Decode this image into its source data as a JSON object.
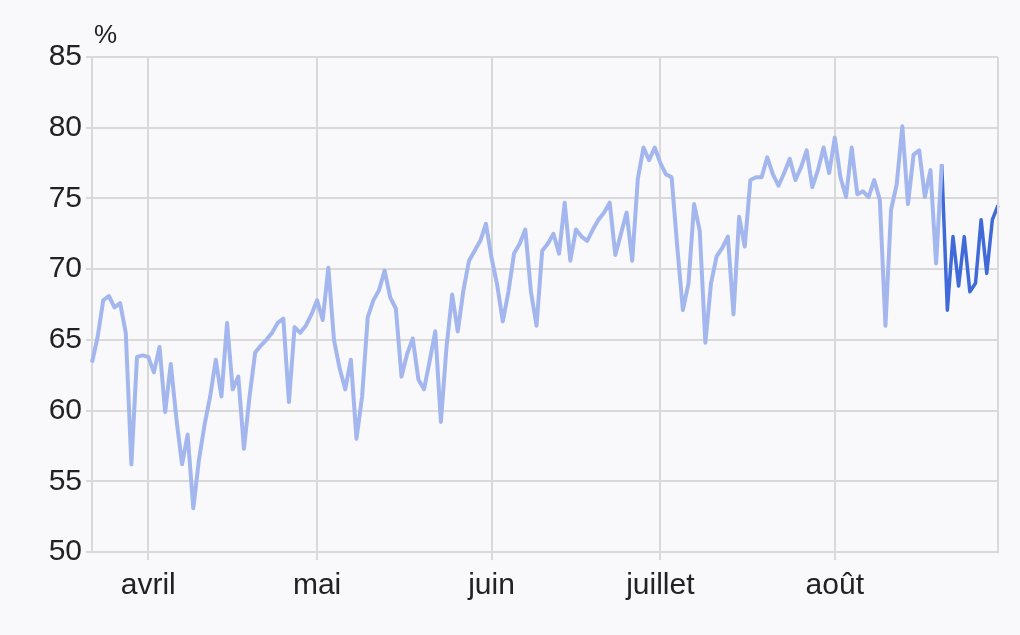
{
  "chart_data": {
    "type": "line",
    "ylabel": "%",
    "categories": [
      null,
      null,
      null,
      null,
      null,
      null,
      null,
      null,
      null,
      null,
      "avril",
      null,
      null,
      null,
      null,
      null,
      null,
      null,
      null,
      null,
      null,
      null,
      null,
      null,
      null,
      null,
      null,
      null,
      null,
      null,
      null,
      null,
      null,
      null,
      null,
      null,
      null,
      null,
      null,
      null,
      "mai",
      null,
      null,
      null,
      null,
      null,
      null,
      null,
      null,
      null,
      null,
      null,
      null,
      null,
      null,
      null,
      null,
      null,
      null,
      null,
      null,
      null,
      null,
      null,
      null,
      null,
      null,
      null,
      null,
      null,
      null,
      "juin",
      null,
      null,
      null,
      null,
      null,
      null,
      null,
      null,
      null,
      null,
      null,
      null,
      null,
      null,
      null,
      null,
      null,
      null,
      null,
      null,
      null,
      null,
      null,
      null,
      null,
      null,
      null,
      null,
      null,
      "juillet",
      null,
      null,
      null,
      null,
      null,
      null,
      null,
      null,
      null,
      null,
      null,
      null,
      null,
      null,
      null,
      null,
      null,
      null,
      null,
      null,
      null,
      null,
      null,
      null,
      null,
      null,
      null,
      null,
      null,
      null,
      "août",
      null,
      null,
      null,
      null,
      null,
      null,
      null,
      null,
      null,
      null,
      null,
      null,
      null,
      null,
      null,
      null,
      null,
      null,
      null,
      null,
      null,
      null,
      null,
      null,
      null,
      null,
      null,
      null,
      null
    ],
    "ylim": [
      50,
      85
    ],
    "yticks": [
      50,
      55,
      60,
      65,
      70,
      75,
      80,
      85
    ],
    "grid": true,
    "legend": false,
    "line_style": "solid",
    "series": [
      {
        "color": "#a3b7ee",
        "values": [
          63.4,
          65.2,
          67.8,
          68.1,
          67.3,
          67.6,
          65.5,
          56.2,
          63.8,
          63.9,
          63.8,
          62.7,
          64.5,
          59.9,
          63.3,
          59.4,
          56.2,
          58.3,
          53.1,
          56.5,
          59.0,
          61.0,
          63.6,
          61.0,
          66.2,
          61.5,
          62.4,
          57.3,
          61.0,
          64.1,
          64.6,
          65.0,
          65.5,
          66.2,
          66.5,
          60.6,
          65.9,
          65.5,
          66.0,
          66.8,
          67.8,
          66.4,
          70.1,
          65.0,
          63.0,
          61.5,
          63.6,
          58.0,
          61.0,
          66.6,
          67.8,
          68.5,
          69.9,
          68.0,
          67.2,
          62.4,
          64.0,
          65.1,
          62.2,
          61.5,
          63.5,
          65.6,
          59.2,
          64.5,
          68.2,
          65.6,
          68.5,
          70.6,
          71.3,
          72.0,
          73.2,
          70.8,
          68.9,
          66.3,
          68.4,
          71.1,
          71.8,
          72.8,
          68.4,
          66.0,
          71.3,
          71.8,
          72.5,
          71.1,
          74.7,
          70.6,
          72.8,
          72.3,
          72.0,
          72.8,
          73.5,
          74.0,
          74.7,
          71.0,
          72.5,
          74.0,
          70.6,
          76.4,
          78.6,
          77.7,
          78.6,
          77.5,
          76.7,
          76.5,
          71.6,
          67.1,
          69.0,
          74.6,
          72.7,
          64.8,
          69.0,
          70.9,
          71.5,
          72.3,
          66.8,
          73.7,
          71.6,
          76.3,
          76.5,
          76.5,
          77.9,
          76.7,
          75.9,
          76.8,
          77.8,
          76.3,
          77.2,
          78.4,
          75.8,
          77.0,
          78.6,
          76.8,
          79.3,
          76.5,
          75.1,
          78.6,
          75.3,
          75.5,
          75.1,
          76.3,
          74.9,
          66.0,
          74.2,
          76.0,
          80.1,
          74.6,
          78.1,
          78.4,
          75.1,
          77.0,
          70.4,
          77.4,
          null,
          null,
          null,
          null,
          null,
          null,
          null,
          null,
          null,
          null
        ]
      },
      {
        "color": "#3f6ad8",
        "values": [
          null,
          null,
          null,
          null,
          null,
          null,
          null,
          null,
          null,
          null,
          null,
          null,
          null,
          null,
          null,
          null,
          null,
          null,
          null,
          null,
          null,
          null,
          null,
          null,
          null,
          null,
          null,
          null,
          null,
          null,
          null,
          null,
          null,
          null,
          null,
          null,
          null,
          null,
          null,
          null,
          null,
          null,
          null,
          null,
          null,
          null,
          null,
          null,
          null,
          null,
          null,
          null,
          null,
          null,
          null,
          null,
          null,
          null,
          null,
          null,
          null,
          null,
          null,
          null,
          null,
          null,
          null,
          null,
          null,
          null,
          null,
          null,
          null,
          null,
          null,
          null,
          null,
          null,
          null,
          null,
          null,
          null,
          null,
          null,
          null,
          null,
          null,
          null,
          null,
          null,
          null,
          null,
          null,
          null,
          null,
          null,
          null,
          null,
          null,
          null,
          null,
          null,
          null,
          null,
          null,
          null,
          null,
          null,
          null,
          null,
          null,
          null,
          null,
          null,
          null,
          null,
          null,
          null,
          null,
          null,
          null,
          null,
          null,
          null,
          null,
          null,
          null,
          null,
          null,
          null,
          null,
          null,
          null,
          null,
          null,
          null,
          null,
          null,
          null,
          null,
          null,
          null,
          null,
          null,
          null,
          null,
          null,
          null,
          null,
          null,
          null,
          77.4,
          67.1,
          72.3,
          68.8,
          72.3,
          68.4,
          69.0,
          73.5,
          69.7,
          73.5,
          74.5
        ]
      }
    ]
  }
}
